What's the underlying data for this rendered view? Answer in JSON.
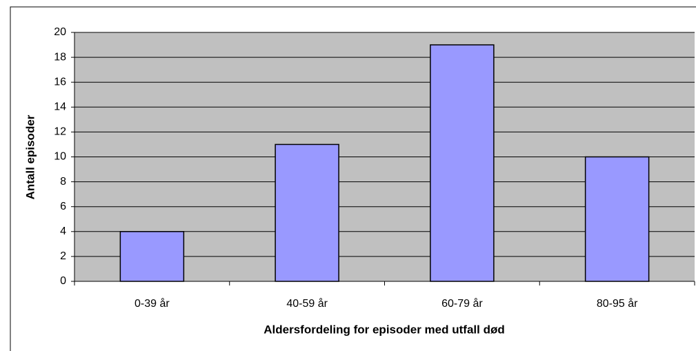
{
  "chart_data": {
    "type": "bar",
    "x_label": "Aldersfordeling for episoder med utfall død",
    "y_label": "Antall episoder",
    "categories": [
      "0-39 år",
      "40-59 år",
      "60-79 år",
      "80-95 år"
    ],
    "values": [
      4,
      11,
      19,
      10
    ],
    "color": "#9999ff",
    "ylim": [
      0,
      20
    ],
    "yticks": [
      0,
      2,
      4,
      6,
      8,
      10,
      12,
      14,
      16,
      18,
      20
    ],
    "grid": true
  }
}
